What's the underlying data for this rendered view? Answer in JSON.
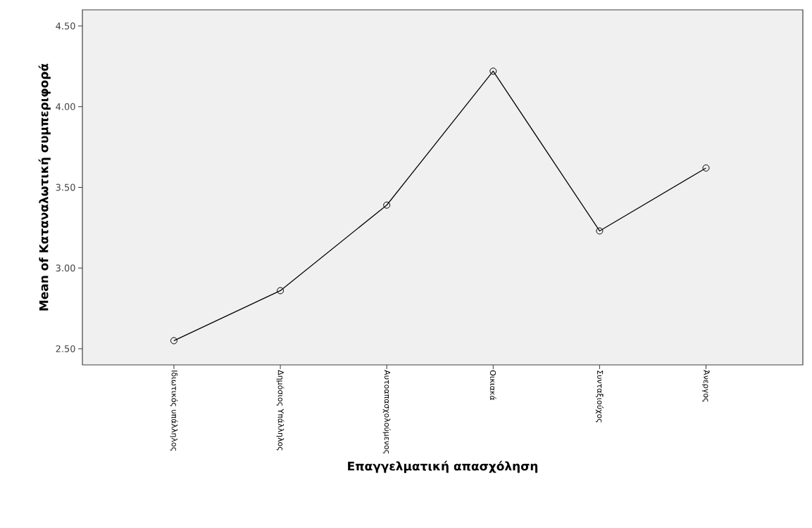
{
  "chart_data": {
    "type": "line",
    "categories": [
      "Ιδιωτικός υπάλληλος",
      "Δημόσιος Υπάλληλος",
      "Αυτοαπασχολούμενος",
      "Οικιακά",
      "Συνταξιούχος",
      "Άνεργος"
    ],
    "values": [
      2.55,
      2.86,
      3.39,
      4.22,
      3.23,
      3.62
    ],
    "color": "#000000",
    "marker": "circle",
    "line_style": "solid",
    "ylim": [
      2.4,
      4.6
    ],
    "yticks": [
      {
        "value": 2.5,
        "label": "2.50"
      },
      {
        "value": 3.0,
        "label": "3.00"
      },
      {
        "value": 3.5,
        "label": "3.50"
      },
      {
        "value": 4.0,
        "label": "4.00"
      },
      {
        "value": 4.5,
        "label": "4.50"
      }
    ],
    "xlabel": "Επαγγελματική απασχόληση",
    "ylabel": "Mean of Καταναλωτική συμπεριφορά",
    "grid": false
  }
}
